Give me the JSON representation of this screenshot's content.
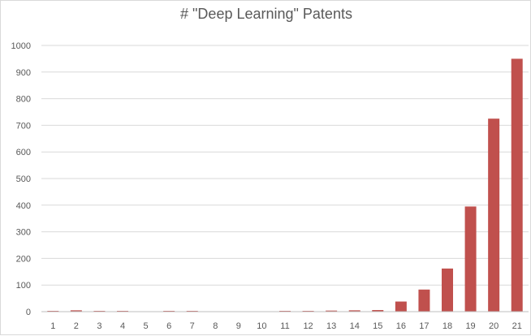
{
  "chart_data": {
    "type": "bar",
    "title": "# \"Deep Learning\" Patents",
    "xlabel": "",
    "ylabel": "",
    "categories": [
      "1",
      "2",
      "3",
      "4",
      "5",
      "6",
      "7",
      "8",
      "9",
      "10",
      "11",
      "12",
      "13",
      "14",
      "15",
      "16",
      "17",
      "18",
      "19",
      "20",
      "21"
    ],
    "values": [
      1,
      5,
      1,
      3,
      0,
      1,
      1,
      0,
      0,
      0,
      1,
      1,
      4,
      5,
      6,
      38,
      83,
      162,
      395,
      725,
      950
    ],
    "ylim": [
      0,
      1000
    ],
    "yticks": [
      0,
      100,
      200,
      300,
      400,
      500,
      600,
      700,
      800,
      900,
      1000
    ],
    "grid": true,
    "legend": "none",
    "colors": {
      "bar": "#c0504d",
      "grid": "#d9d9d9",
      "axis": "#bfbfbf",
      "text": "#595959"
    }
  }
}
